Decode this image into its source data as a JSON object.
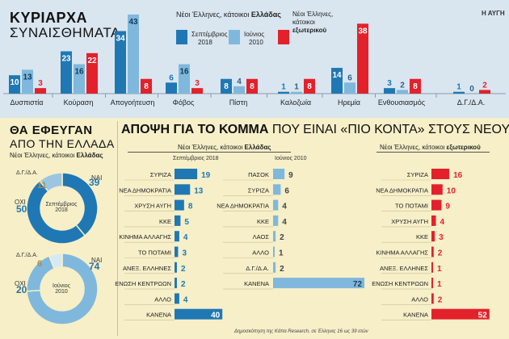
{
  "source_logo": "Η ΑΥΓΗ",
  "top": {
    "title_line1": "ΚΥΡΙΑΡΧΑ",
    "title_line2": "ΣΥΝΑΙΣΘΗΜΑΤΑ",
    "legend_head_prefix": "Νέοι Έλληνες, κάτοικοι ",
    "legend_head_bold": "Ελλάδας",
    "legend_sep_line1": "Σεπτέμβριος",
    "legend_sep_line2": "2018",
    "legend_jun_line1": "Ιούνιος",
    "legend_jun_line2": "2010",
    "legend_abroad_line1": "Νέοι Έλληνες,",
    "legend_abroad_line2": "κάτοικοι",
    "legend_abroad_line3": "εξωτερικού"
  },
  "donuts": {
    "title_line1": "ΘΑ ΕΦΕΥΓΑΝ",
    "title_line2": "ΑΠΟ ΤΗΝ ΕΛΛΑΔΑ",
    "subtitle_prefix": "Νέοι Έλληνες, κάτοικοι ",
    "subtitle_bold": "Ελλάδας",
    "label_dk": "Δ.Γ./Δ.Α.",
    "label_yes": "ΝΑΙ",
    "label_no": "ΟΧΙ",
    "center1_line1": "Σεπτέμβριος",
    "center1_line2": "2018",
    "center2_line1": "Ιούνιος",
    "center2_line2": "2010"
  },
  "party": {
    "title_bold": "ΑΠΟΨΗ ΓΙΑ ΤΟ ΚΟΜΜΑ",
    "title_light": " ΠΟΥ ΕΙΝΑΙ «ΠΙΟ ΚΟΝΤΑ» ΣΤΟΥΣ ΝΕΟΥΣ",
    "head_home_prefix": "Νέοι Έλληνες, κάτοικοι ",
    "head_home_bold": "Ελλάδας",
    "head_abroad_prefix": "Νέοι Έλληνες, κάτοικοι ",
    "head_abroad_bold": "εξωτερικού",
    "sub_sep": "Σεπτέμβριος 2018",
    "sub_jun": "Ιούνιος 2010",
    "footnote": "Δημοσκόπηση της Kάπα Research, σε Έλληνες 16 ως 39 ετών"
  },
  "colors": {
    "sep2018": "#1f78b4",
    "jun2010": "#7fb8dc",
    "abroad": "#e3212b",
    "dk": "#9bc6e2"
  },
  "chart_data": [
    {
      "type": "bar",
      "title": "ΚΥΡΙΑΡΧΑ ΣΥΝΑΙΣΘΗΜΑΤΑ",
      "categories": [
        "Δυσπιστία",
        "Κούραση",
        "Απογοήτευση",
        "Φόβος",
        "Πίστη",
        "Καλοζωία",
        "Ηρεμία",
        "Ενθουσιασμός",
        "Δ.Γ./Δ.Α."
      ],
      "series": [
        {
          "name": "Σεπτέμβριος 2018",
          "values": [
            10,
            23,
            34,
            6,
            8,
            1,
            14,
            3,
            1
          ]
        },
        {
          "name": "Ιούνιος 2010",
          "values": [
            13,
            16,
            43,
            16,
            4,
            1,
            6,
            2,
            0
          ]
        },
        {
          "name": "Νέοι Έλληνες, κάτοικοι εξωτερικού",
          "values": [
            3,
            22,
            8,
            3,
            8,
            8,
            38,
            8,
            2
          ]
        }
      ]
    },
    {
      "type": "pie",
      "title": "ΘΑ ΕΦΕΥΓΑΝ ΑΠΟ ΤΗΝ ΕΛΛΑΔΑ — Σεπτέμβριος 2018",
      "categories": [
        "ΝΑΙ",
        "ΟΧΙ",
        "Δ.Γ./Δ.Α."
      ],
      "values": [
        39,
        50,
        11
      ]
    },
    {
      "type": "pie",
      "title": "ΘΑ ΕΦΕΥΓΑΝ ΑΠΟ ΤΗΝ ΕΛΛΑΔΑ — Ιούνιος 2010",
      "categories": [
        "ΝΑΙ",
        "ΟΧΙ",
        "Δ.Γ./Δ.Α."
      ],
      "values": [
        74,
        20,
        6
      ]
    },
    {
      "type": "bar",
      "title": "Νέοι Έλληνες, κάτοικοι Ελλάδας — Σεπτέμβριος 2018",
      "categories": [
        "ΣΥΡΙΖΑ",
        "ΝΕΑ ΔΗΜΟΚΡΑΤΙΑ",
        "ΧΡΥΣΗ ΑΥΓΗ",
        "ΚΚΕ",
        "ΚΙΝΗΜΑ ΑΛΛΑΓΗΣ",
        "ΤΟ ΠΟΤΑΜΙ",
        "ΑΝΕΞ. ΕΛΛΗΝΕΣ",
        "ΕΝΩΣΗ ΚΕΝΤΡΩΩΝ",
        "ΑΛΛΟ",
        "ΚΑΝΕΝΑ"
      ],
      "values": [
        19,
        13,
        8,
        5,
        4,
        3,
        2,
        2,
        4,
        40
      ]
    },
    {
      "type": "bar",
      "title": "Νέοι Έλληνες, κάτοικοι Ελλάδας — Ιούνιος 2010",
      "categories": [
        "ΠΑΣΟΚ",
        "ΣΥΡΙΖΑ",
        "ΝΕΑ ΔΗΜΟΚΡΑΤΙΑ",
        "ΚΚΕ",
        "ΛΑΟΣ",
        "ΑΛΛΟ",
        "Δ.Γ./Δ.Α.",
        "ΚΑΝΕΝΑ"
      ],
      "values": [
        9,
        6,
        4,
        4,
        2,
        1,
        2,
        72
      ]
    },
    {
      "type": "bar",
      "title": "Νέοι Έλληνες, κάτοικοι εξωτερικού",
      "categories": [
        "ΣΥΡΙΖΑ",
        "ΝΕΑ ΔΗΜΟΚΡΑΤΙΑ",
        "ΤΟ ΠΟΤΑΜΙ",
        "ΧΡΥΣΗ ΑΥΓΗ",
        "ΚΚΕ",
        "ΚΙΝΗΜΑ ΑΛΛΑΓΗΣ",
        "ΑΝΕΞ. ΕΛΛΗΝΕΣ",
        "ΕΝΩΣΗ ΚΕΝΤΡΩΩΝ",
        "ΑΛΛΟ",
        "ΚΑΝΕΝΑ"
      ],
      "values": [
        16,
        10,
        9,
        4,
        3,
        2,
        1,
        1,
        2,
        52
      ]
    }
  ]
}
